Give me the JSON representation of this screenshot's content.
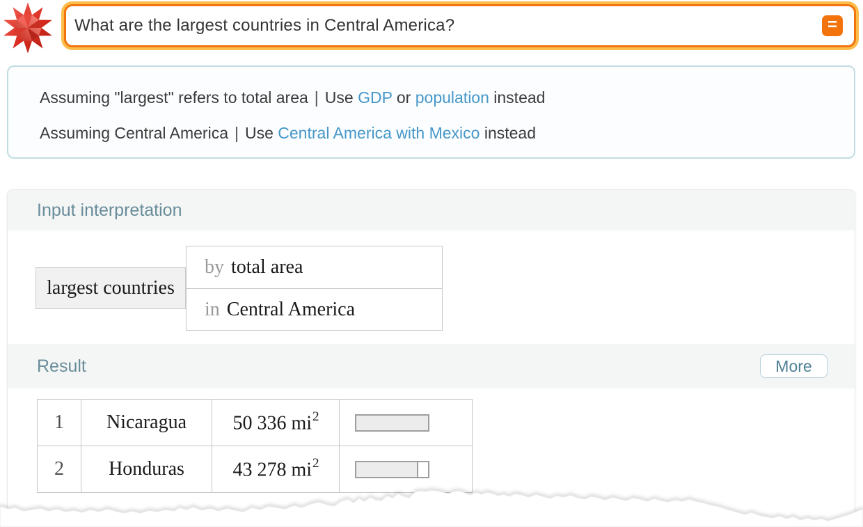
{
  "app": {
    "name": "WolframAlpha"
  },
  "query_bar": {
    "query": "What are the largest countries in Central America?",
    "compute_glyph": "="
  },
  "assumptions": {
    "line1": {
      "assuming": "Assuming \"largest\" refers to total area",
      "pipe": "|",
      "use": "Use",
      "link1": "GDP",
      "or": "or",
      "link2": "population",
      "instead": "instead"
    },
    "line2": {
      "assuming": "Assuming Central America",
      "pipe": "|",
      "use": "Use",
      "link1": "Central America with Mexico",
      "instead": "instead"
    }
  },
  "pods": {
    "input_interpretation": {
      "title": "Input interpretation",
      "subject": "largest countries",
      "qualifiers": [
        {
          "key": "by",
          "value": "total area"
        },
        {
          "key": "in",
          "value": "Central America"
        }
      ]
    },
    "result": {
      "title": "Result",
      "more_label": "More",
      "table": {
        "bar_max": 50336,
        "rows": [
          {
            "rank": "1",
            "name": "Nicaragua",
            "area": "50 336",
            "unit": "mi",
            "exponent": "2",
            "value": 50336
          },
          {
            "rank": "2",
            "name": "Honduras",
            "area": "43 278",
            "unit": "mi",
            "exponent": "2",
            "value": 43278
          }
        ]
      }
    }
  },
  "colors": {
    "accent_orange": "#f3730c",
    "border_gold": "#fcbd4a",
    "link_blue": "#4697c9",
    "pod_title_teal": "#688d9a",
    "logo_red": "#d1281e"
  }
}
